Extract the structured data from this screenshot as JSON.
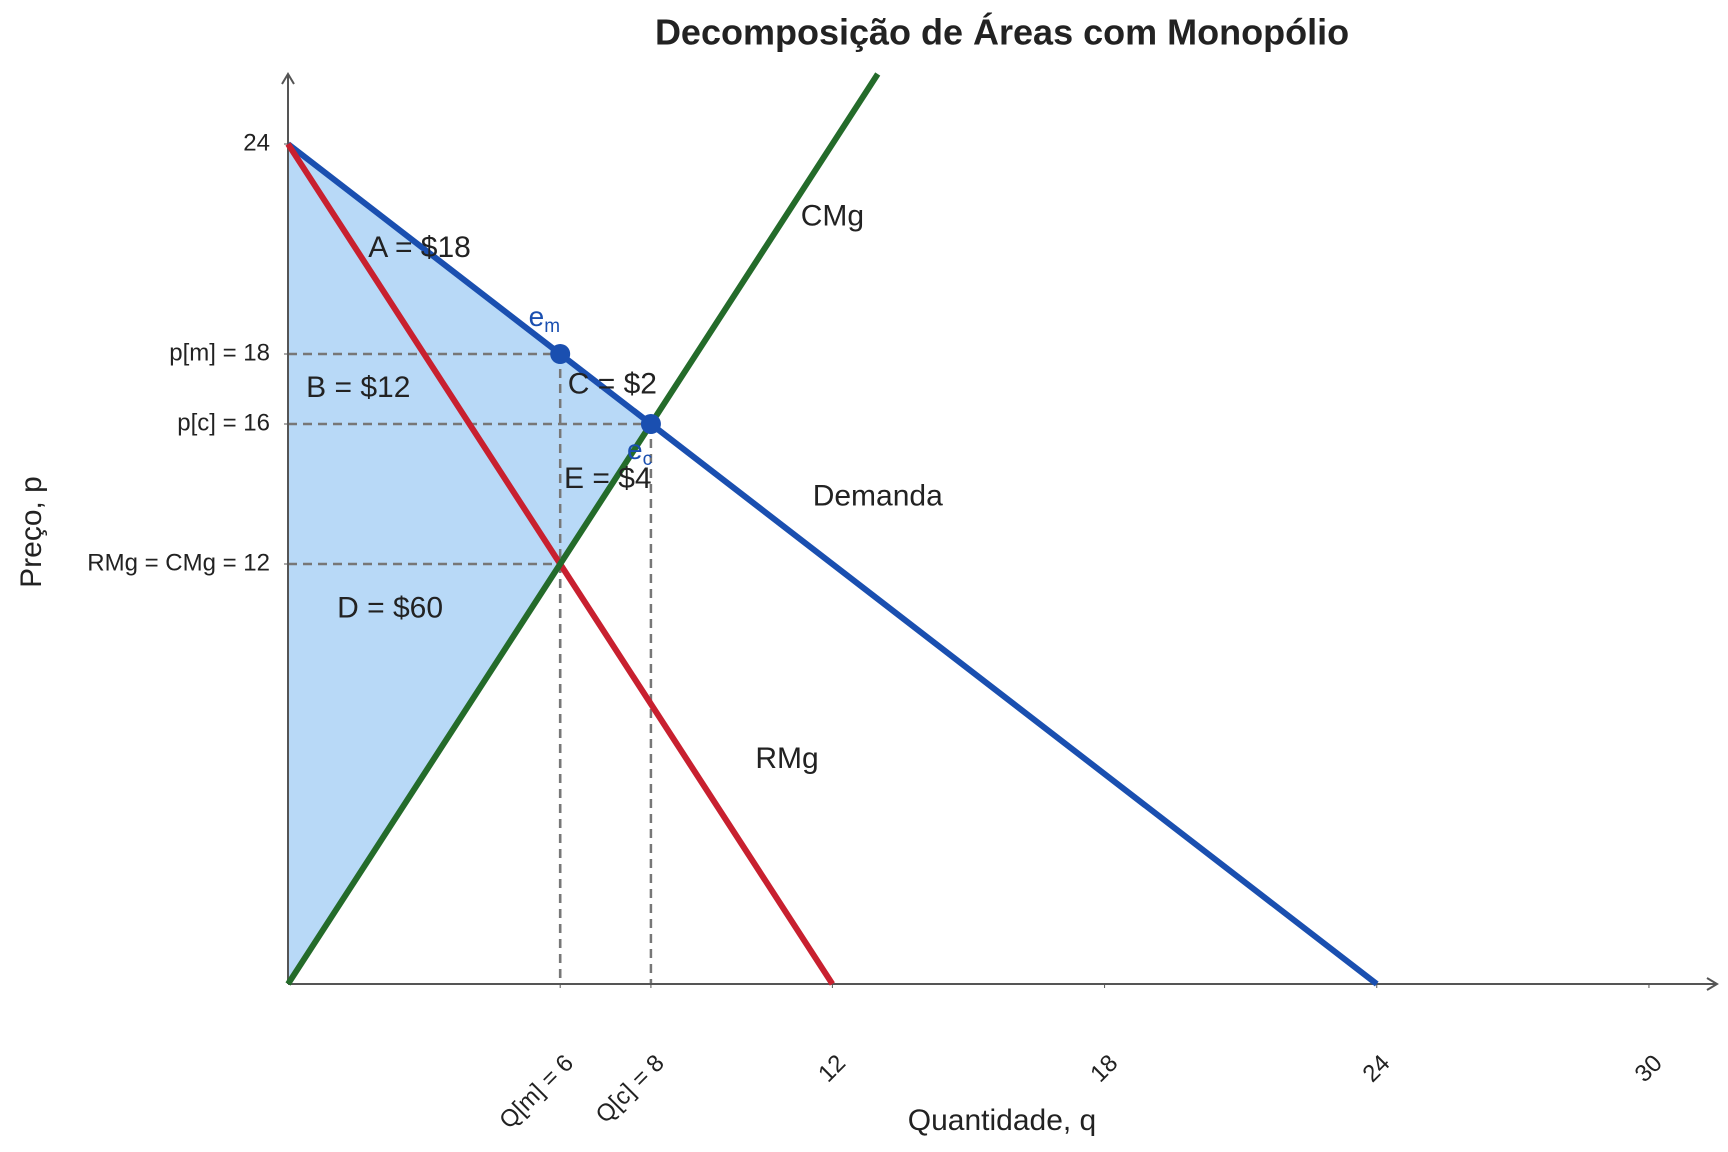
{
  "chart_data": {
    "type": "line",
    "title": "Decomposição de Áreas com Monopólio",
    "x_label": "Quantidade, q",
    "y_label": "Preço, p",
    "xlim": [
      0,
      31.5
    ],
    "ylim": [
      0,
      26
    ],
    "xticks": [
      {
        "value": 6,
        "label": "Q[m] = 6"
      },
      {
        "value": 8,
        "label": "Q[c] = 8"
      },
      12,
      18,
      24,
      30
    ],
    "yticks": [
      {
        "value": 12,
        "label": "RMg = CMg = 12"
      },
      {
        "value": 16,
        "label": "p[c] = 16"
      },
      {
        "value": 18,
        "label": "p[m] = 18"
      },
      24
    ],
    "shaded_area": {
      "color": "#b8d9f7",
      "x": [
        0,
        8,
        0
      ],
      "values": [
        24,
        16,
        0
      ]
    },
    "series": [
      {
        "name": "Demanda",
        "color": "#1a4fb0",
        "x": [
          0,
          24
        ],
        "values": [
          24,
          0
        ],
        "label_pos": [
          13,
          13.9
        ]
      },
      {
        "name": "RMg",
        "color": "#c8202f",
        "x": [
          0,
          12
        ],
        "values": [
          24,
          0
        ],
        "label_pos": [
          11,
          6.4
        ]
      },
      {
        "name": "CMg",
        "color": "#246b2a",
        "x": [
          0,
          13
        ],
        "values": [
          0,
          26
        ],
        "label_pos": [
          12,
          21.9
        ]
      }
    ],
    "guides": [
      {
        "x": 6,
        "y": 18
      },
      {
        "x": 8,
        "y": 16
      },
      {
        "x": 6,
        "y": 12
      }
    ],
    "points": [
      {
        "x": 6,
        "y": 18,
        "label": "e",
        "subscript": "m",
        "label_pos": [
          5.65,
          19.0
        ],
        "color": "#1a4fb0"
      },
      {
        "x": 8,
        "y": 16,
        "label": "e",
        "subscript": "c",
        "label_pos": [
          7.75,
          15.2
        ],
        "color": "#1a4fb0"
      }
    ],
    "annotations": [
      {
        "text": "A = $18",
        "x": 2.9,
        "y": 21
      },
      {
        "text": "B = $12",
        "x": 1.55,
        "y": 17
      },
      {
        "text": "C = $2",
        "x": 7.15,
        "y": 17.1
      },
      {
        "text": "E = $4",
        "x": 7.05,
        "y": 14.4
      },
      {
        "text": "D = $60",
        "x": 2.25,
        "y": 10.7
      }
    ]
  }
}
